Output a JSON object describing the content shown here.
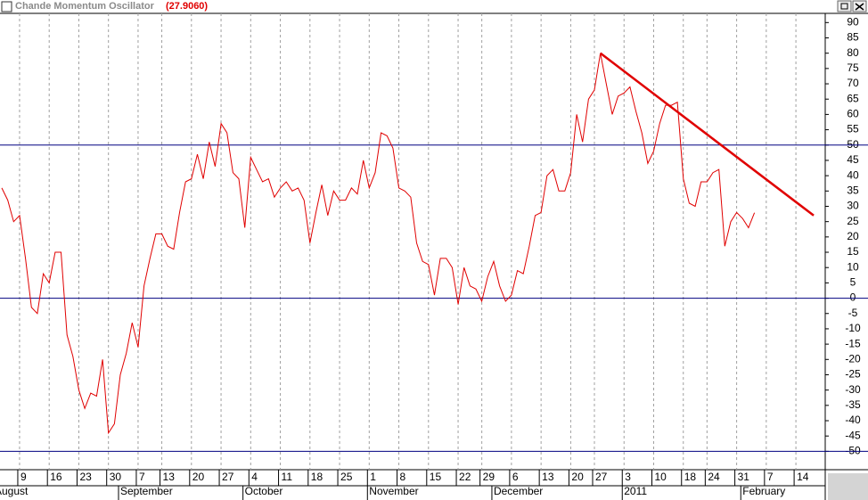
{
  "chart_data": {
    "type": "line",
    "title": "Chande Momentum Oscillator",
    "current_value_label": "(27.9060)",
    "categories": [
      null,
      null,
      null,
      "9",
      null,
      null,
      null,
      null,
      "16",
      null,
      null,
      null,
      null,
      "23",
      null,
      null,
      null,
      null,
      "30",
      null,
      null,
      null,
      null,
      "7",
      null,
      null,
      null,
      "13",
      null,
      null,
      null,
      null,
      "20",
      null,
      null,
      null,
      null,
      "27",
      null,
      null,
      null,
      null,
      "4",
      null,
      null,
      null,
      null,
      "11",
      null,
      null,
      null,
      null,
      "18",
      null,
      null,
      null,
      null,
      "25",
      null,
      null,
      null,
      null,
      "1",
      null,
      null,
      null,
      null,
      "8",
      null,
      null,
      null,
      null,
      "15",
      null,
      null,
      null,
      null,
      "22",
      null,
      null,
      null,
      "29",
      null,
      null,
      null,
      null,
      "6",
      null,
      null,
      null,
      null,
      "13",
      null,
      null,
      null,
      null,
      "20",
      null,
      null,
      null,
      "27",
      null,
      null,
      null,
      null,
      "3",
      null,
      null,
      null,
      null,
      "10",
      null,
      null,
      null,
      null,
      "18",
      null,
      null,
      null,
      "24",
      null,
      null,
      null,
      null,
      "31",
      null,
      null,
      null,
      null,
      "7",
      null,
      null,
      null,
      null,
      "14",
      null,
      null,
      null,
      null
    ],
    "month_labels": [
      "August",
      null,
      null,
      null,
      null,
      null,
      null,
      null,
      null,
      null,
      null,
      null,
      null,
      null,
      null,
      null,
      null,
      null,
      null,
      null,
      "September",
      null,
      null,
      null,
      null,
      null,
      null,
      null,
      null,
      null,
      null,
      null,
      null,
      null,
      null,
      null,
      null,
      null,
      null,
      null,
      null,
      "October",
      null,
      null,
      null,
      null,
      null,
      null,
      null,
      null,
      null,
      null,
      null,
      null,
      null,
      null,
      null,
      null,
      null,
      null,
      null,
      null,
      "November",
      null,
      null,
      null,
      null,
      null,
      null,
      null,
      null,
      null,
      null,
      null,
      null,
      null,
      null,
      null,
      null,
      null,
      null,
      null,
      null,
      "December",
      null,
      null,
      null,
      null,
      null,
      null,
      null,
      null,
      null,
      null,
      null,
      null,
      null,
      null,
      null,
      null,
      null,
      null,
      null,
      null,
      null,
      "2011",
      null,
      null,
      null,
      null,
      null,
      null,
      null,
      null,
      null,
      null,
      null,
      null,
      null,
      null,
      null,
      null,
      null,
      null,
      null,
      "February",
      null,
      null,
      null,
      null,
      null,
      null,
      null,
      null,
      null,
      null,
      null,
      null,
      null
    ],
    "values": [
      36,
      32,
      25,
      27,
      13,
      -3,
      -5,
      8,
      5,
      15,
      15,
      -12,
      -19,
      -30,
      -36,
      -31,
      -32,
      -20,
      -44,
      -41,
      -25,
      -18,
      -8,
      -16,
      4,
      13,
      21,
      21,
      17,
      16,
      28,
      38,
      39,
      47,
      39,
      51,
      43,
      57,
      54,
      41,
      39,
      23,
      46,
      42,
      38,
      39,
      33,
      36,
      38,
      35,
      36,
      32,
      18,
      28,
      37,
      27,
      35,
      32,
      32,
      36,
      34,
      45,
      36,
      41,
      54,
      53,
      49,
      36,
      35,
      33,
      18,
      12,
      11,
      1,
      13,
      13,
      10,
      -2,
      10,
      4,
      3,
      -1,
      7,
      12,
      4,
      -1,
      1,
      9,
      8,
      17,
      27,
      28,
      40,
      42,
      35,
      35,
      41,
      60,
      51,
      65,
      68,
      80,
      70,
      60,
      66,
      67,
      69,
      61,
      54,
      44,
      48,
      57,
      63,
      63,
      64,
      39,
      31,
      30,
      38,
      38,
      41,
      42,
      17,
      25,
      28,
      26,
      23,
      27.906,
      null,
      null,
      null,
      null,
      null,
      null,
      null,
      null,
      null,
      null,
      null
    ],
    "color": "#e00000",
    "hlines": [
      50,
      0,
      -50
    ],
    "hline_color": "#000080",
    "trendline": {
      "from": [
        101,
        80
      ],
      "to": [
        137,
        27
      ],
      "color": "#e00000"
    },
    "ylim": [
      -56,
      93
    ],
    "yticks": [
      90,
      85,
      80,
      75,
      70,
      65,
      60,
      55,
      50,
      45,
      40,
      35,
      30,
      25,
      20,
      15,
      10,
      5,
      0,
      -5,
      -10,
      -15,
      -20,
      -25,
      -30,
      -35,
      -40,
      -45,
      -50
    ],
    "grid": true
  }
}
